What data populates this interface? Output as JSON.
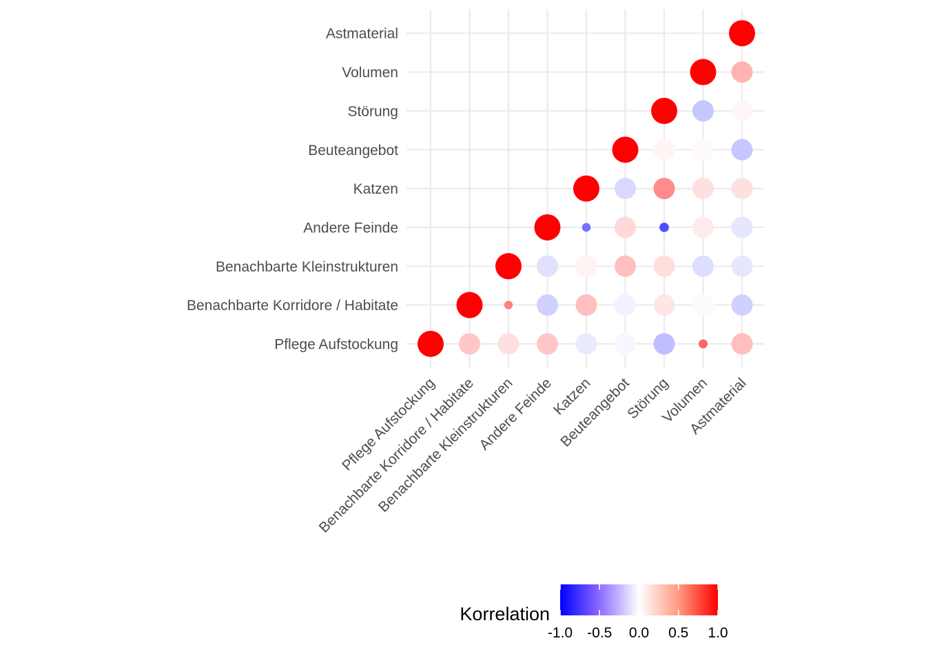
{
  "chart_data": {
    "type": "scatter",
    "variables": [
      "Pflege Aufstockung",
      "Benachbarte Korridore / Habitate",
      "Benachbarte Kleinstrukturen",
      "Andere Feinde",
      "Katzen",
      "Beuteangebot",
      "Störung",
      "Volumen",
      "Astmaterial"
    ],
    "x_ticks": [
      "Pflege Aufstockung",
      "Benachbarte Korridore / Habitate",
      "Benachbarte Kleinstrukturen",
      "Andere Feinde",
      "Katzen",
      "Beuteangebot",
      "Störung",
      "Volumen",
      "Astmaterial"
    ],
    "y_ticks": [
      "Pflege Aufstockung",
      "Benachbarte Korridore / Habitate",
      "Benachbarte Kleinstrukturen",
      "Andere Feinde",
      "Katzen",
      "Beuteangebot",
      "Störung",
      "Volumen",
      "Astmaterial"
    ],
    "cells": [
      {
        "x": "Pflege Aufstockung",
        "y": "Pflege Aufstockung",
        "r": 1.0
      },
      {
        "x": "Benachbarte Korridore / Habitate",
        "y": "Pflege Aufstockung",
        "r": 0.22
      },
      {
        "x": "Benachbarte Kleinstrukturen",
        "y": "Pflege Aufstockung",
        "r": 0.12
      },
      {
        "x": "Andere Feinde",
        "y": "Pflege Aufstockung",
        "r": 0.22
      },
      {
        "x": "Katzen",
        "y": "Pflege Aufstockung",
        "r": -0.08
      },
      {
        "x": "Beuteangebot",
        "y": "Pflege Aufstockung",
        "r": -0.03
      },
      {
        "x": "Störung",
        "y": "Pflege Aufstockung",
        "r": -0.25
      },
      {
        "x": "Volumen",
        "y": "Pflege Aufstockung",
        "r": 0.6
      },
      {
        "x": "Astmaterial",
        "y": "Pflege Aufstockung",
        "r": 0.25
      },
      {
        "x": "Benachbarte Korridore / Habitate",
        "y": "Benachbarte Korridore / Habitate",
        "r": 1.0
      },
      {
        "x": "Benachbarte Kleinstrukturen",
        "y": "Benachbarte Korridore / Habitate",
        "r": 0.5
      },
      {
        "x": "Andere Feinde",
        "y": "Benachbarte Korridore / Habitate",
        "r": -0.18
      },
      {
        "x": "Katzen",
        "y": "Benachbarte Korridore / Habitate",
        "r": 0.25
      },
      {
        "x": "Beuteangebot",
        "y": "Benachbarte Korridore / Habitate",
        "r": -0.05
      },
      {
        "x": "Störung",
        "y": "Benachbarte Korridore / Habitate",
        "r": 0.1
      },
      {
        "x": "Volumen",
        "y": "Benachbarte Korridore / Habitate",
        "r": -0.02
      },
      {
        "x": "Astmaterial",
        "y": "Benachbarte Korridore / Habitate",
        "r": -0.18
      },
      {
        "x": "Benachbarte Kleinstrukturen",
        "y": "Benachbarte Kleinstrukturen",
        "r": 1.0
      },
      {
        "x": "Andere Feinde",
        "y": "Benachbarte Kleinstrukturen",
        "r": -0.12
      },
      {
        "x": "Katzen",
        "y": "Benachbarte Kleinstrukturen",
        "r": 0.05
      },
      {
        "x": "Beuteangebot",
        "y": "Benachbarte Kleinstrukturen",
        "r": 0.25
      },
      {
        "x": "Störung",
        "y": "Benachbarte Kleinstrukturen",
        "r": 0.13
      },
      {
        "x": "Volumen",
        "y": "Benachbarte Kleinstrukturen",
        "r": -0.13
      },
      {
        "x": "Astmaterial",
        "y": "Benachbarte Kleinstrukturen",
        "r": -0.1
      },
      {
        "x": "Andere Feinde",
        "y": "Andere Feinde",
        "r": 1.0
      },
      {
        "x": "Katzen",
        "y": "Andere Feinde",
        "r": -0.55
      },
      {
        "x": "Beuteangebot",
        "y": "Andere Feinde",
        "r": 0.15
      },
      {
        "x": "Störung",
        "y": "Andere Feinde",
        "r": -0.7
      },
      {
        "x": "Volumen",
        "y": "Andere Feinde",
        "r": 0.08
      },
      {
        "x": "Astmaterial",
        "y": "Andere Feinde",
        "r": -0.1
      },
      {
        "x": "Katzen",
        "y": "Katzen",
        "r": 1.0
      },
      {
        "x": "Beuteangebot",
        "y": "Katzen",
        "r": -0.15
      },
      {
        "x": "Störung",
        "y": "Katzen",
        "r": 0.45
      },
      {
        "x": "Volumen",
        "y": "Katzen",
        "r": 0.12
      },
      {
        "x": "Astmaterial",
        "y": "Katzen",
        "r": 0.12
      },
      {
        "x": "Beuteangebot",
        "y": "Beuteangebot",
        "r": 1.0
      },
      {
        "x": "Störung",
        "y": "Beuteangebot",
        "r": 0.04
      },
      {
        "x": "Volumen",
        "y": "Beuteangebot",
        "r": 0.02
      },
      {
        "x": "Astmaterial",
        "y": "Beuteangebot",
        "r": -0.22
      },
      {
        "x": "Störung",
        "y": "Störung",
        "r": 1.0
      },
      {
        "x": "Volumen",
        "y": "Störung",
        "r": -0.22
      },
      {
        "x": "Astmaterial",
        "y": "Störung",
        "r": 0.03
      },
      {
        "x": "Volumen",
        "y": "Volumen",
        "r": 1.0
      },
      {
        "x": "Astmaterial",
        "y": "Volumen",
        "r": 0.3
      },
      {
        "x": "Astmaterial",
        "y": "Astmaterial",
        "r": 1.0
      }
    ],
    "legend": {
      "title": "Korrelation",
      "ticks": [
        "-1.0",
        "-0.5",
        "0.0",
        "0.5",
        "1.0"
      ],
      "tick_values": [
        -1.0,
        -0.5,
        0.0,
        0.5,
        1.0
      ],
      "position": "bottom"
    },
    "color_scale": {
      "low": "#0000ff",
      "mid": "#ffffff",
      "high": "#ff0000"
    },
    "size_encodes": "absolute correlation",
    "grid": true
  }
}
